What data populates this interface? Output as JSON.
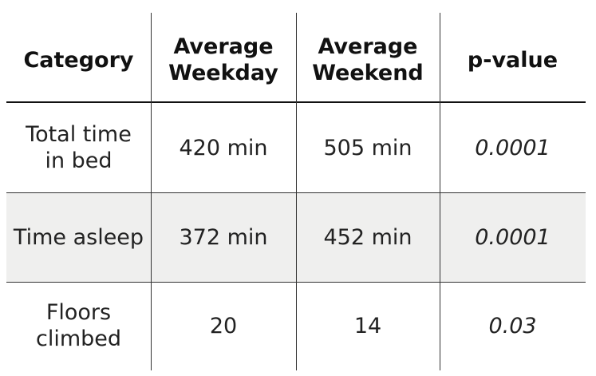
{
  "table": {
    "headers": [
      {
        "line1": "Category",
        "line2": ""
      },
      {
        "line1": "Average",
        "line2": "Weekday"
      },
      {
        "line1": "Average",
        "line2": "Weekend"
      },
      {
        "line1": "p-value",
        "line2": ""
      }
    ],
    "rows": [
      {
        "category_line1": "Total time",
        "category_line2": "in bed",
        "weekday": "420 min",
        "weekend": "505 min",
        "p_value": "0.0001"
      },
      {
        "category_line1": "Time asleep",
        "category_line2": "",
        "weekday": "372 min",
        "weekend": "452 min",
        "p_value": "0.0001"
      },
      {
        "category_line1": "Floors",
        "category_line2": "climbed",
        "weekday": "20",
        "weekend": "14",
        "p_value": "0.03"
      }
    ],
    "colors": {
      "highlight_row": "#efefee",
      "rule": "#111111",
      "text": "#222222"
    }
  }
}
